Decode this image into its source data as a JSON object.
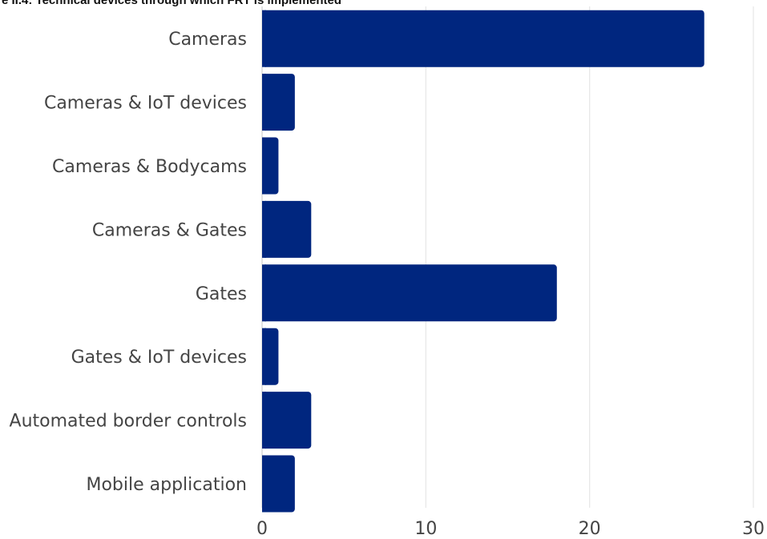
{
  "chart_data": {
    "type": "bar",
    "orientation": "horizontal",
    "title": "e II.4: Technical devices through which FRT is implemented",
    "categories": [
      "Cameras",
      "Cameras & IoT devices",
      "Cameras & Bodycams",
      "Cameras & Gates",
      "Gates",
      "Gates & IoT devices",
      "Automated border controls",
      "Mobile application"
    ],
    "values": [
      27,
      2,
      1,
      3,
      18,
      1,
      3,
      2
    ],
    "xlim": [
      0,
      30
    ],
    "xticks": [
      "0",
      "10",
      "20",
      "30"
    ],
    "xlabel": "",
    "ylabel": "",
    "grid": "vertical",
    "bar_color": "#00267f",
    "grid_color": "#e6e6e6"
  }
}
